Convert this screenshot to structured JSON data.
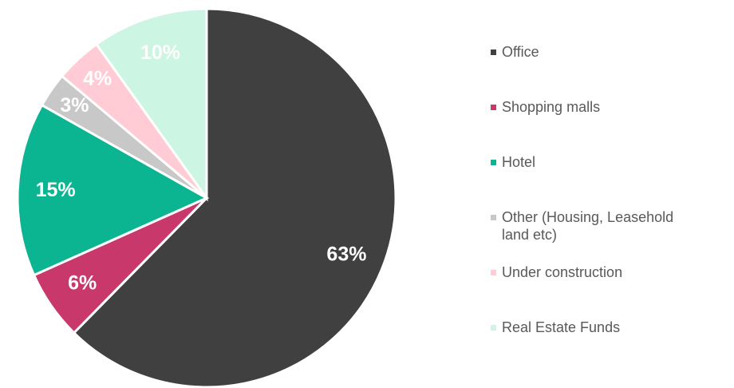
{
  "chart_data": {
    "type": "pie",
    "categories": [
      "Office",
      "Shopping malls",
      "Hotel",
      "Other (Housing, Leasehold land etc)",
      "Under construction",
      "Real Estate Funds"
    ],
    "values": [
      63,
      6,
      15,
      3,
      4,
      10
    ],
    "value_labels": [
      "63%",
      "6%",
      "15%",
      "3%",
      "4%",
      "10%"
    ],
    "colors": [
      "#404040",
      "#c8386b",
      "#0bb592",
      "#c8c8c8",
      "#ffccd5",
      "#ccf5e3"
    ],
    "legend": "right"
  }
}
